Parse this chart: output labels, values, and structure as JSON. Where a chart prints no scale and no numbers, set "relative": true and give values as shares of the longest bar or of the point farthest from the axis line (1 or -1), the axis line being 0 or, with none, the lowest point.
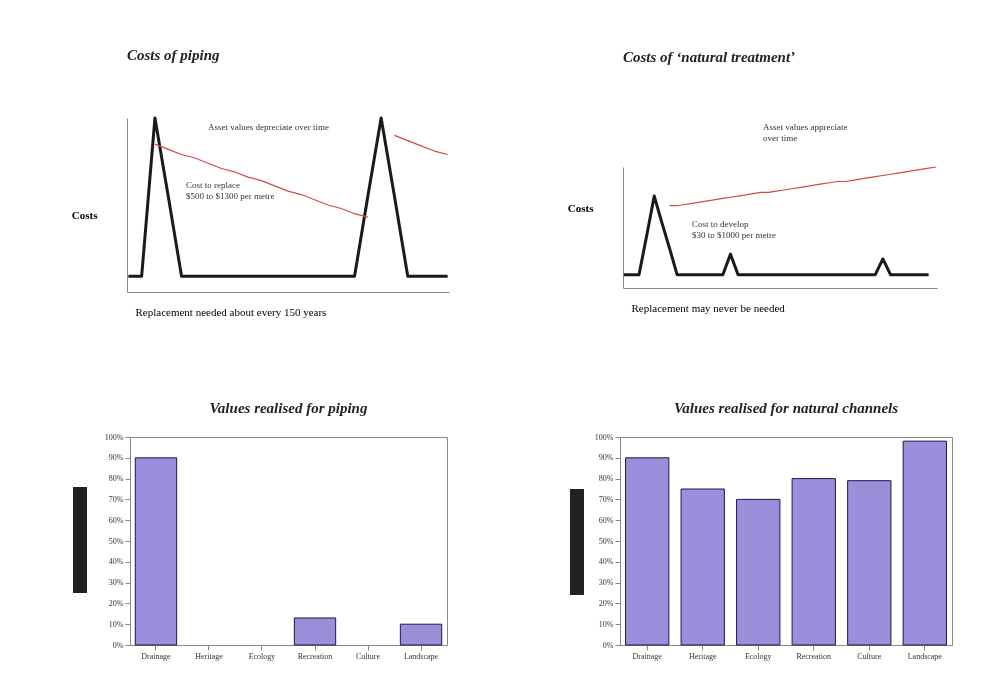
{
  "chart_data": [
    {
      "type": "line",
      "title": "Costs of piping",
      "ylabel": "Costs",
      "xlabel": "Replacement needed about every 150 years",
      "relative": true,
      "tick_labels": false,
      "categories": [
        null,
        null,
        null,
        null,
        null,
        null,
        null,
        null,
        null,
        null,
        null,
        null,
        null,
        null,
        null,
        null,
        null,
        null,
        null,
        null,
        null,
        null,
        null,
        null,
        null
      ],
      "series": [
        {
          "color": "#1a1a1a",
          "values": [
            0.09,
            0.09,
            1,
            0.55,
            0.09,
            0.09,
            0.09,
            0.09,
            0.09,
            0.09,
            0.09,
            0.09,
            0.09,
            0.09,
            0.09,
            0.09,
            0.09,
            0.09,
            0.55,
            1,
            0.55,
            0.09,
            0.09,
            0.09,
            0.09
          ]
        },
        {
          "color": "#d04a4a",
          "values": [
            null,
            null,
            0.85,
            0.82,
            0.79,
            0.77,
            0.74,
            0.71,
            0.69,
            0.66,
            0.64,
            0.61,
            0.58,
            0.56,
            0.53,
            0.5,
            0.48,
            0.45,
            0.43,
            null,
            0.9,
            0.87,
            0.84,
            0.81,
            0.79
          ]
        }
      ],
      "annotations": [
        "Asset values depreciate over time",
        "Cost to replace\n$500 to $1300 per metre"
      ]
    },
    {
      "type": "line",
      "title": "Costs of ‘natural treatment’",
      "ylabel": "Costs",
      "xlabel": "Replacement may never be needed",
      "relative": true,
      "tick_labels": false,
      "categories": [
        null,
        null,
        null,
        null,
        null,
        null,
        null,
        null,
        null,
        null,
        null,
        null,
        null,
        null,
        null,
        null,
        null,
        null,
        null,
        null,
        null,
        null,
        null,
        null,
        null,
        null,
        null,
        null,
        null,
        null,
        null,
        null,
        null,
        null,
        null,
        null,
        null,
        null,
        null,
        null,
        null,
        null
      ],
      "series": [
        {
          "color": "#1a1a1a",
          "values": [
            0.11,
            0.11,
            0.11,
            0.43,
            0.76,
            0.54,
            0.33,
            0.11,
            0.11,
            0.11,
            0.11,
            0.11,
            0.11,
            0.11,
            0.28,
            0.11,
            0.11,
            0.11,
            0.11,
            0.11,
            0.11,
            0.11,
            0.11,
            0.11,
            0.11,
            0.11,
            0.11,
            0.11,
            0.11,
            0.11,
            0.11,
            0.11,
            0.11,
            0.11,
            0.24,
            0.11,
            0.11,
            0.11,
            0.11,
            0.11,
            0.11,
            null
          ]
        },
        {
          "color": "#d04a4a",
          "values": [
            null,
            null,
            null,
            null,
            null,
            null,
            0.68,
            0.68,
            0.69,
            0.7,
            0.71,
            0.72,
            0.73,
            0.74,
            0.75,
            0.76,
            0.77,
            0.78,
            0.79,
            0.79,
            0.8,
            0.81,
            0.82,
            0.83,
            0.84,
            0.85,
            0.86,
            0.87,
            0.88,
            0.88,
            0.89,
            0.9,
            0.91,
            0.92,
            0.93,
            0.94,
            0.95,
            0.96,
            0.97,
            0.98,
            0.99,
            1
          ]
        }
      ],
      "annotations": [
        "Asset values appreciate\nover time",
        "Cost to develop\n$30 to $1000 per metre"
      ]
    },
    {
      "type": "bar",
      "title": "Values realised for piping",
      "categories": [
        "Drainage",
        "Heritage",
        "Ecology",
        "Recreation",
        "Culture",
        "Landscape"
      ],
      "values": [
        90,
        0,
        0,
        13,
        0,
        10
      ],
      "color": "#9b8fdc",
      "ylim": [
        0,
        100
      ],
      "yticks": [
        {
          "value": 0,
          "label": "0%"
        },
        {
          "value": 10,
          "label": "10%"
        },
        {
          "value": 20,
          "label": "20%"
        },
        {
          "value": 30,
          "label": "30%"
        },
        {
          "value": 40,
          "label": "40%"
        },
        {
          "value": 50,
          "label": "50%"
        },
        {
          "value": 60,
          "label": "60%"
        },
        {
          "value": 70,
          "label": "70%"
        },
        {
          "value": 80,
          "label": "80%"
        },
        {
          "value": 90,
          "label": "90%"
        },
        {
          "value": 100,
          "label": "100%"
        }
      ]
    },
    {
      "type": "bar",
      "title": "Values realised for natural channels",
      "categories": [
        "Drainage",
        "Heritage",
        "Ecology",
        "Recreation",
        "Culture",
        "Landscape"
      ],
      "values": [
        90,
        75,
        70,
        80,
        79,
        98
      ],
      "color": "#9b8fdc",
      "ylim": [
        0,
        100
      ],
      "yticks": [
        {
          "value": 0,
          "label": "0%"
        },
        {
          "value": 10,
          "label": "10%"
        },
        {
          "value": 20,
          "label": "20%"
        },
        {
          "value": 30,
          "label": "30%"
        },
        {
          "value": 40,
          "label": "40%"
        },
        {
          "value": 50,
          "label": "50%"
        },
        {
          "value": 60,
          "label": "60%"
        },
        {
          "value": 70,
          "label": "70%"
        },
        {
          "value": 80,
          "label": "80%"
        },
        {
          "value": 90,
          "label": "90%"
        },
        {
          "value": 100,
          "label": "100%"
        }
      ]
    }
  ]
}
